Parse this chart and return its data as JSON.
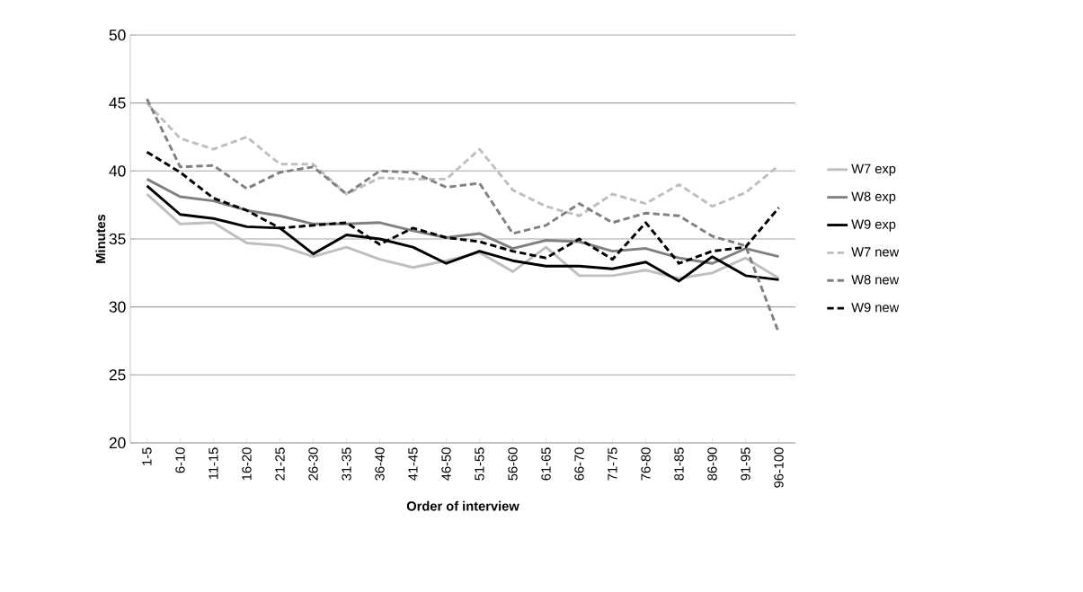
{
  "chart_data": {
    "type": "line",
    "xlabel": "Order of interview",
    "ylabel": "Minutes",
    "categories": [
      "1-5",
      "6-10",
      "11-15",
      "16-20",
      "21-25",
      "26-30",
      "31-35",
      "36-40",
      "41-45",
      "46-50",
      "51-55",
      "56-60",
      "61-65",
      "66-70",
      "71-75",
      "76-80",
      "81-85",
      "86-90",
      "91-95",
      "96-100"
    ],
    "series": [
      {
        "name": "W7 exp",
        "color": "#bfbfbf",
        "line_style": "solid",
        "values": [
          38.3,
          36.1,
          36.2,
          34.7,
          34.5,
          33.7,
          34.4,
          33.5,
          32.9,
          33.4,
          34.0,
          32.6,
          34.4,
          32.3,
          32.3,
          32.7,
          32.1,
          32.5,
          33.6,
          32.1
        ]
      },
      {
        "name": "W8 exp",
        "color": "#808080",
        "line_style": "solid",
        "values": [
          39.4,
          38.1,
          37.8,
          37.1,
          36.7,
          36.1,
          36.1,
          36.2,
          35.6,
          35.1,
          35.4,
          34.3,
          34.9,
          34.8,
          34.1,
          34.3,
          33.6,
          33.2,
          34.3,
          33.7
        ]
      },
      {
        "name": "W9 exp",
        "color": "#000000",
        "line_style": "solid",
        "values": [
          38.9,
          36.8,
          36.5,
          35.9,
          35.8,
          33.9,
          35.3,
          35.0,
          34.4,
          33.2,
          34.1,
          33.4,
          33.0,
          33.0,
          32.8,
          33.3,
          31.9,
          33.7,
          32.3,
          32.0
        ]
      },
      {
        "name": "W7 new",
        "color": "#bfbfbf",
        "line_style": "dashed",
        "values": [
          45.0,
          42.4,
          41.6,
          42.5,
          40.5,
          40.5,
          38.3,
          39.5,
          39.4,
          39.4,
          41.6,
          38.6,
          37.4,
          36.7,
          38.3,
          37.6,
          39.0,
          37.4,
          38.4,
          40.4
        ]
      },
      {
        "name": "W8 new",
        "color": "#808080",
        "line_style": "dashed",
        "values": [
          45.3,
          40.3,
          40.4,
          38.7,
          39.9,
          40.3,
          38.3,
          40.0,
          39.9,
          38.8,
          39.1,
          35.4,
          36.0,
          37.6,
          36.2,
          36.9,
          36.7,
          35.2,
          34.5,
          28.1
        ]
      },
      {
        "name": "W9 new",
        "color": "#000000",
        "line_style": "dashed",
        "values": [
          41.4,
          39.9,
          38.0,
          37.1,
          35.8,
          36.0,
          36.2,
          34.6,
          35.8,
          35.1,
          34.8,
          34.1,
          33.6,
          35.0,
          33.5,
          36.2,
          33.2,
          34.1,
          34.4,
          37.3
        ]
      }
    ],
    "ylim": [
      20,
      50
    ],
    "yticks": [
      20,
      25,
      30,
      35,
      40,
      45,
      50
    ],
    "grid": "y",
    "legend": "right",
    "marker": "none"
  }
}
